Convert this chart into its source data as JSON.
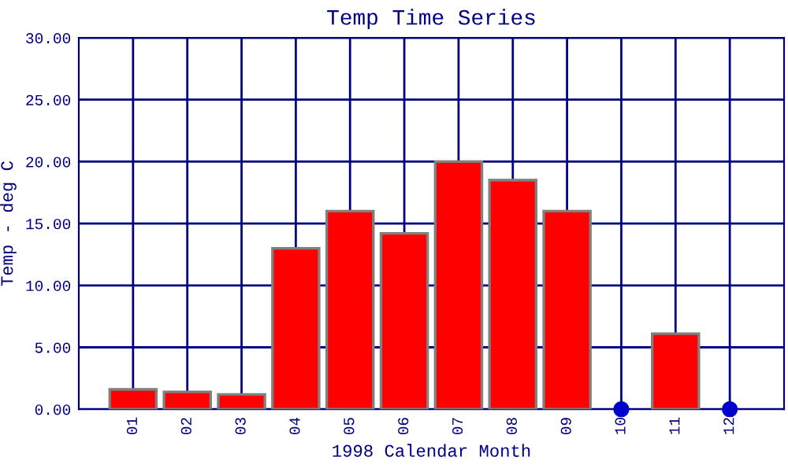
{
  "chart_data": {
    "type": "bar",
    "title": "Temp Time Series",
    "xlabel": "1998 Calendar Month",
    "ylabel": "Temp - deg C",
    "categories": [
      "01",
      "02",
      "03",
      "04",
      "05",
      "06",
      "07",
      "08",
      "09",
      "10",
      "11",
      "12"
    ],
    "series": [
      {
        "color": "#ff0000",
        "values": [
          1.6,
          1.4,
          1.2,
          13.0,
          16.0,
          14.2,
          20.0,
          18.5,
          16.0,
          null,
          6.1,
          null
        ]
      },
      {
        "type": "scatter",
        "color": "#0000cc",
        "x": [
          "10",
          "12"
        ],
        "values": [
          0,
          0
        ],
        "marker": "circle"
      }
    ],
    "ylim": [
      0,
      30
    ],
    "yticks": [
      {
        "value": 0,
        "label": "0.00"
      },
      {
        "value": 5,
        "label": "5.00"
      },
      {
        "value": 10,
        "label": "10.00"
      },
      {
        "value": 15,
        "label": "15.00"
      },
      {
        "value": 20,
        "label": "20.00"
      },
      {
        "value": 25,
        "label": "25.00"
      },
      {
        "value": 30,
        "label": "30.00"
      }
    ],
    "grid": true
  }
}
